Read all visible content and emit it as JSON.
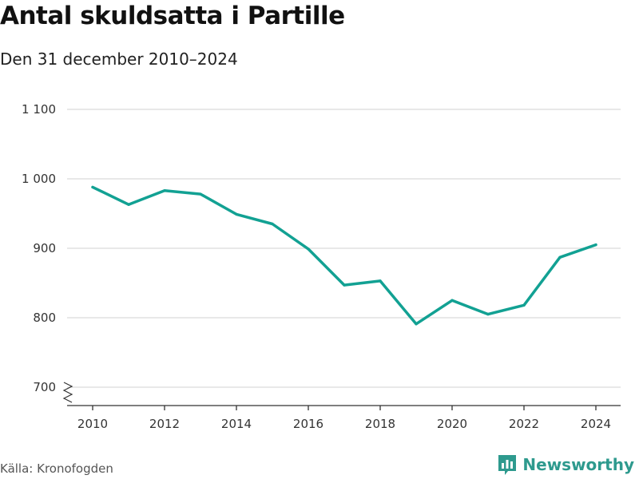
{
  "chart_data": {
    "type": "line",
    "title": "Antal skuldsatta i Partille",
    "subtitle": "Den 31 december 2010–2024",
    "xlabel": "",
    "ylabel": "",
    "x": [
      2010,
      2011,
      2012,
      2013,
      2014,
      2015,
      2016,
      2017,
      2018,
      2019,
      2020,
      2021,
      2022,
      2023,
      2024
    ],
    "series": [
      {
        "name": "Antal skuldsatta",
        "values": [
          988,
          963,
          983,
          978,
          949,
          935,
          899,
          847,
          853,
          791,
          825,
          805,
          818,
          887,
          905
        ]
      }
    ],
    "ylim": [
      700,
      1100
    ],
    "y_ticks": [
      700,
      800,
      900,
      1000,
      1100
    ],
    "y_tick_labels": [
      "700",
      "800",
      "900",
      "1 000",
      "1 100"
    ],
    "x_ticks": [
      2010,
      2012,
      2014,
      2016,
      2018,
      2020,
      2022,
      2024
    ],
    "x_tick_labels": [
      "2010",
      "2012",
      "2014",
      "2016",
      "2018",
      "2020",
      "2022",
      "2024"
    ],
    "grid": true,
    "axis_break": true
  },
  "footer": {
    "source": "Källa: Kronofogden",
    "brand": "Newsworthy"
  },
  "colors": {
    "line": "#12a193",
    "brand": "#2e9a8e"
  }
}
